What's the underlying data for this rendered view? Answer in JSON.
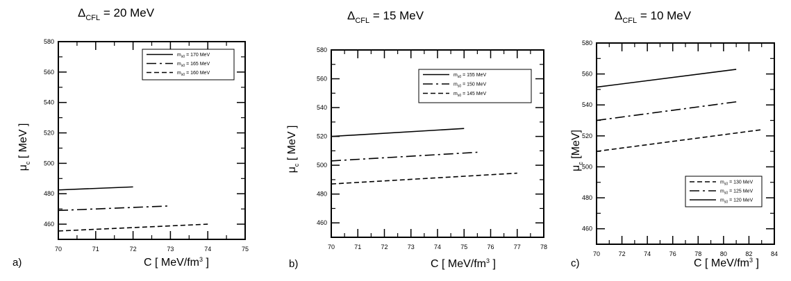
{
  "chart_data": [
    {
      "type": "line",
      "panel_label": "a)",
      "title_main": "Δ",
      "title_sub": "CFL",
      "title_rest": " = 20 MeV",
      "xlabel": "C [ MeV/fm³ ]",
      "ylabel": "μc [ MeV ]",
      "xlim": [
        70,
        75
      ],
      "ylim": [
        450,
        580
      ],
      "xticks": [
        70,
        71,
        72,
        73,
        74,
        75
      ],
      "yticks": [
        460,
        480,
        500,
        520,
        540,
        560,
        580
      ],
      "legend_position": "top-right",
      "series": [
        {
          "name": "m_s0 = 170 MeV",
          "style": "solid",
          "x": [
            70,
            72
          ],
          "y": [
            482.5,
            484.5
          ]
        },
        {
          "name": "m_s0 = 165 MeV",
          "style": "dashdot",
          "x": [
            70,
            73
          ],
          "y": [
            469,
            472
          ]
        },
        {
          "name": "m_s0 = 160 MeV",
          "style": "dashed",
          "x": [
            70,
            74
          ],
          "y": [
            455.5,
            460
          ]
        }
      ]
    },
    {
      "type": "line",
      "panel_label": "b)",
      "title_main": "Δ",
      "title_sub": "CFL",
      "title_rest": " = 15 MeV",
      "xlabel": "C [ MeV/fm³ ]",
      "ylabel": "μc [ MeV ]",
      "xlim": [
        70,
        78
      ],
      "ylim": [
        450,
        580
      ],
      "xticks": [
        70,
        71,
        72,
        73,
        74,
        75,
        76,
        77,
        78
      ],
      "yticks": [
        460,
        480,
        500,
        520,
        540,
        560,
        580
      ],
      "legend_position": "top-right",
      "series": [
        {
          "name": "m_s0 = 155 MeV",
          "style": "solid",
          "x": [
            70,
            75
          ],
          "y": [
            520,
            525.5
          ]
        },
        {
          "name": "m_s0 = 150 MeV",
          "style": "dashdot",
          "x": [
            70,
            75.5
          ],
          "y": [
            503,
            509
          ]
        },
        {
          "name": "m_s0 = 145 MeV",
          "style": "dashed",
          "x": [
            70,
            77
          ],
          "y": [
            487,
            494.5
          ]
        }
      ]
    },
    {
      "type": "line",
      "panel_label": "c)",
      "title_main": "Δ",
      "title_sub": "CFL",
      "title_rest": " = 10 MeV",
      "xlabel": "C [ MeV/fm³ ]",
      "ylabel": "μc [MeV]",
      "xlim": [
        70,
        84
      ],
      "ylim": [
        450,
        580
      ],
      "xticks": [
        70,
        72,
        74,
        76,
        78,
        80,
        82,
        84
      ],
      "yticks": [
        460,
        480,
        500,
        520,
        540,
        560,
        580
      ],
      "legend_position": "bottom-right",
      "series": [
        {
          "name": "m_s0 = 130 MeV",
          "style": "dashed",
          "x": [
            70,
            83
          ],
          "y": [
            510,
            524
          ]
        },
        {
          "name": "m_s0 = 125 MeV",
          "style": "dashdot",
          "x": [
            70,
            81
          ],
          "y": [
            530,
            542
          ]
        },
        {
          "name": "m_s0 = 120 MeV",
          "style": "solid",
          "x": [
            70,
            81
          ],
          "y": [
            551.5,
            563
          ]
        }
      ]
    }
  ]
}
